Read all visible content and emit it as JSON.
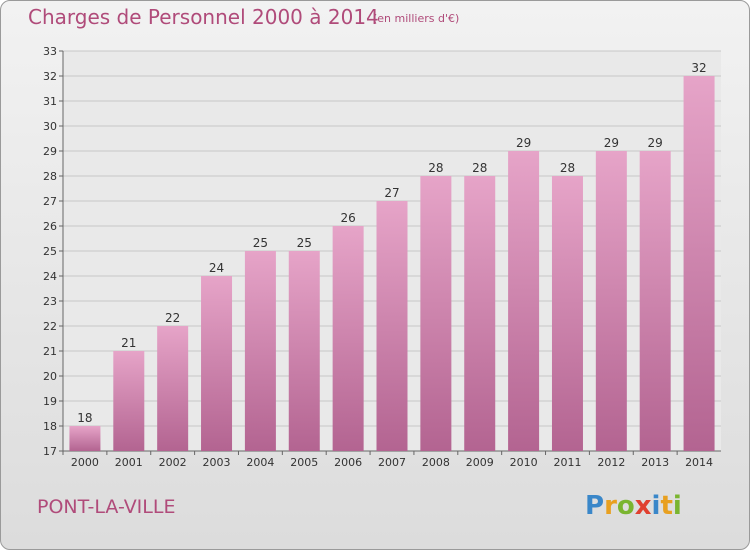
{
  "header": {
    "title": "Charges de Personnel 2000 à 2014",
    "subtitle": "(en milliers d'€)"
  },
  "footer": {
    "place": "PONT-LA-VILLE",
    "logo_letters": [
      {
        "char": "P",
        "color": "#3a87c9"
      },
      {
        "char": "r",
        "color": "#e8a020"
      },
      {
        "char": "o",
        "color": "#7ab530"
      },
      {
        "char": "x",
        "color": "#e04030"
      },
      {
        "char": "i",
        "color": "#3a87c9"
      },
      {
        "char": "t",
        "color": "#e8a020"
      },
      {
        "char": "i",
        "color": "#7ab530"
      }
    ]
  },
  "chart_data": {
    "type": "bar",
    "title": "Charges de Personnel 2000 à 2014",
    "subtitle": "(en milliers d'€)",
    "categories": [
      "2000",
      "2001",
      "2002",
      "2003",
      "2004",
      "2005",
      "2006",
      "2007",
      "2008",
      "2009",
      "2010",
      "2011",
      "2012",
      "2013",
      "2014"
    ],
    "values": [
      18,
      21,
      22,
      24,
      25,
      25,
      26,
      27,
      28,
      28,
      29,
      28,
      29,
      29,
      32
    ],
    "ylim": [
      17,
      33
    ],
    "yticks": [
      17,
      18,
      19,
      20,
      21,
      22,
      23,
      24,
      25,
      26,
      27,
      28,
      29,
      30,
      31,
      32,
      33
    ],
    "grid": true,
    "bar_color": "#c8709d"
  }
}
